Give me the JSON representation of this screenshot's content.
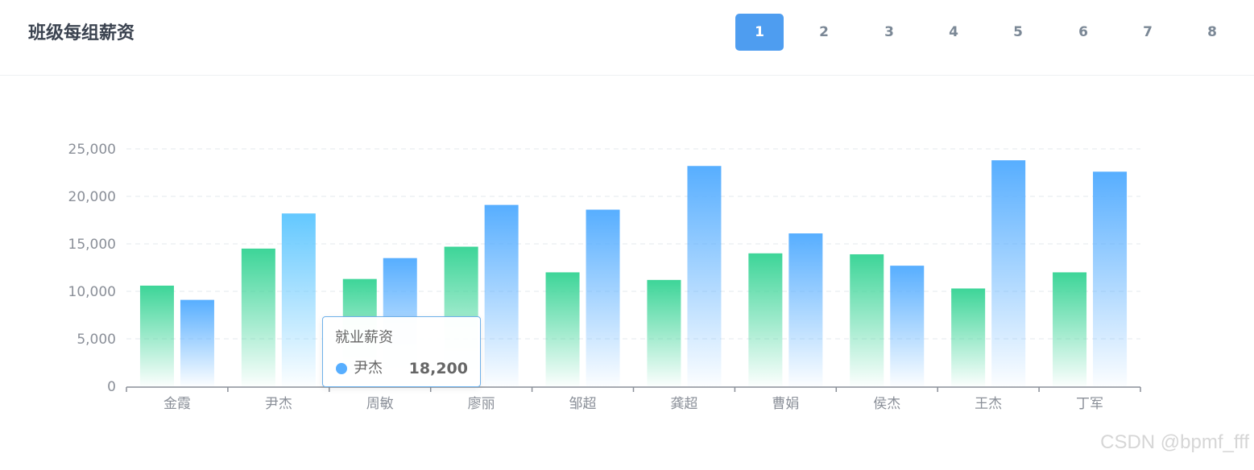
{
  "header": {
    "title": "班级每组薪资",
    "pages": [
      "1",
      "2",
      "3",
      "4",
      "5",
      "6",
      "7",
      "8"
    ],
    "active_page": "1"
  },
  "chart_data": {
    "type": "bar",
    "categories": [
      "金霞",
      "尹杰",
      "周敏",
      "廖丽",
      "邹超",
      "龚超",
      "曹娟",
      "侯杰",
      "王杰",
      "丁军"
    ],
    "series": [
      {
        "name": "",
        "color": "#3dd598",
        "values": [
          10600,
          14500,
          11300,
          14700,
          12000,
          11200,
          14000,
          13900,
          10300,
          12000
        ]
      },
      {
        "name": "就业薪资",
        "color": "#57aeff",
        "values": [
          9100,
          18200,
          13500,
          19100,
          18600,
          23200,
          16100,
          12700,
          23800,
          22600
        ]
      }
    ],
    "ylim": [
      0,
      25000
    ],
    "yticks": [
      "0",
      "5,000",
      "10,000",
      "15,000",
      "20,000",
      "25,000"
    ],
    "ytick_values": [
      0,
      5000,
      10000,
      15000,
      20000,
      25000
    ],
    "grid": true
  },
  "tooltip": {
    "title": "就业薪资",
    "name": "尹杰",
    "value": "18,200",
    "dot_color": "#57aeff"
  },
  "watermark": "CSDN @bpmf_fff"
}
